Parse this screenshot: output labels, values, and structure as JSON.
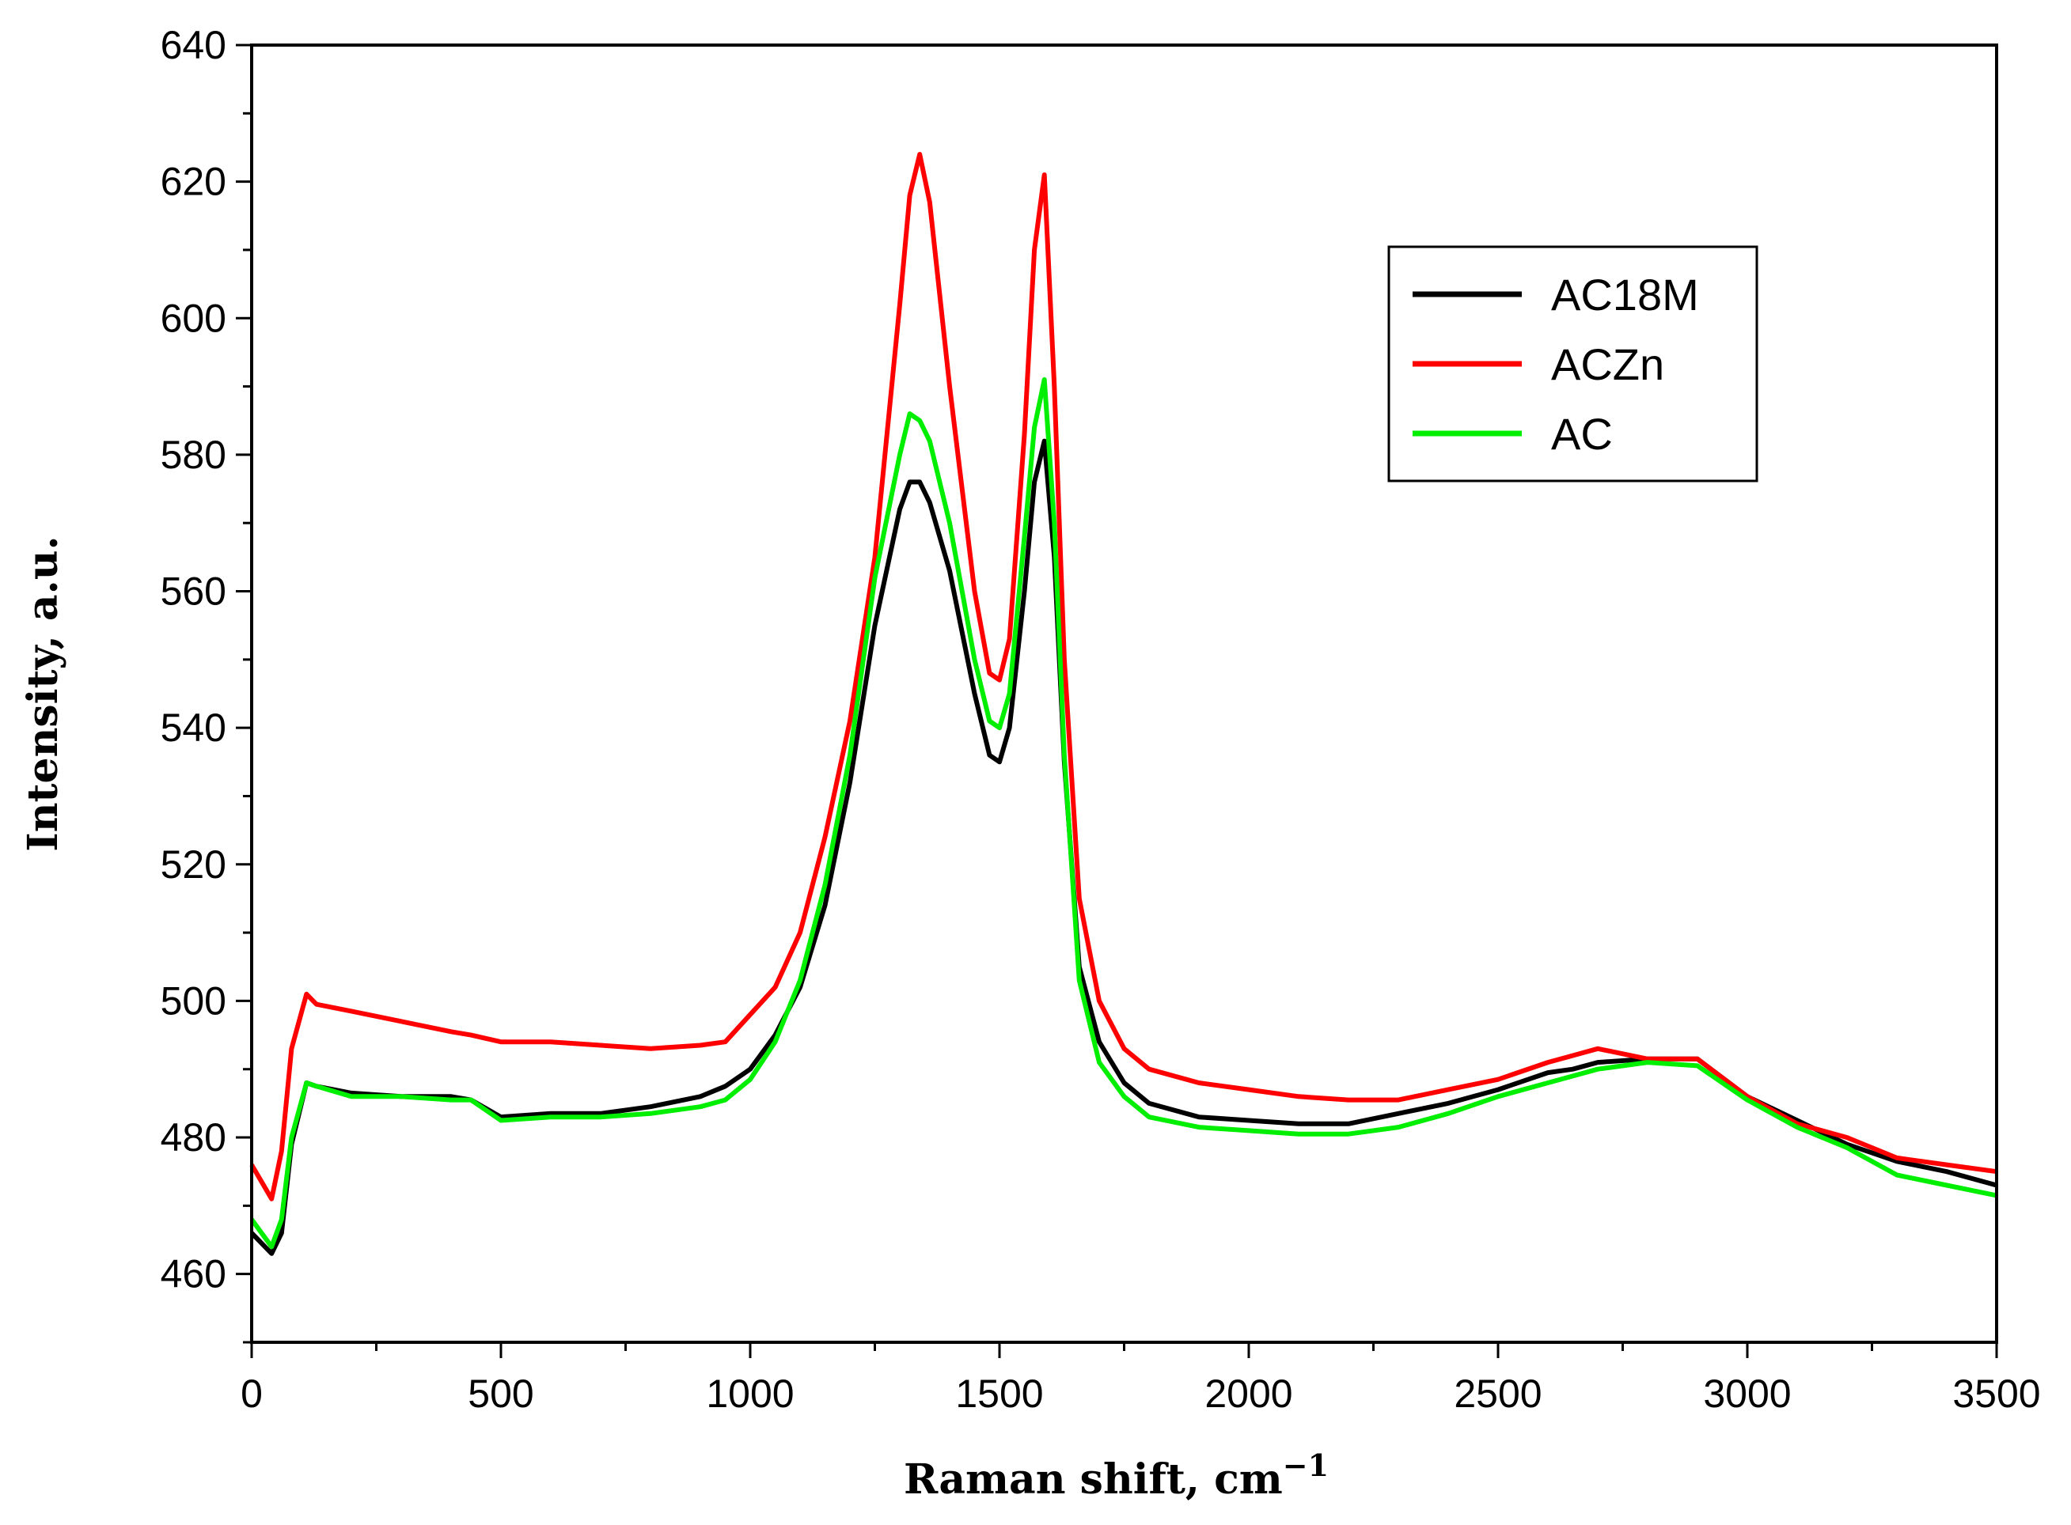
{
  "chart_data": {
    "type": "line",
    "title": "",
    "xlabel": "Raman shift, cm",
    "xlabel_sup": "−1",
    "ylabel": "Intensity, a.u.",
    "xlim": [
      0,
      3500
    ],
    "ylim": [
      450,
      640
    ],
    "xticks": [
      0,
      500,
      1000,
      1500,
      2000,
      2500,
      3000,
      3500
    ],
    "yticks": [
      460,
      480,
      500,
      520,
      540,
      560,
      580,
      600,
      620,
      640
    ],
    "grid": false,
    "legend_position": "top-right",
    "x": [
      0,
      40,
      60,
      80,
      110,
      130,
      200,
      300,
      400,
      440,
      500,
      600,
      700,
      800,
      900,
      950,
      1000,
      1050,
      1100,
      1150,
      1200,
      1250,
      1300,
      1320,
      1340,
      1360,
      1400,
      1450,
      1480,
      1500,
      1520,
      1550,
      1570,
      1590,
      1610,
      1630,
      1660,
      1700,
      1750,
      1800,
      1900,
      2000,
      2100,
      2200,
      2300,
      2400,
      2500,
      2600,
      2650,
      2700,
      2800,
      2900,
      3000,
      3100,
      3200,
      3300,
      3400,
      3500
    ],
    "series": [
      {
        "name": "AC18M",
        "color": "#000000",
        "values": [
          466,
          463,
          466,
          479,
          488,
          487.5,
          486.5,
          486,
          486,
          485.5,
          483,
          483.5,
          483.5,
          484.5,
          486,
          487.5,
          490,
          495,
          502,
          514,
          532,
          555,
          572,
          576,
          576,
          573,
          563,
          545,
          536,
          535,
          540,
          560,
          576,
          582,
          565,
          535,
          505,
          494,
          488,
          485,
          483,
          482.5,
          482,
          482,
          483.5,
          485,
          487,
          489.5,
          490,
          491,
          491.5,
          491.5,
          486,
          482.5,
          479,
          476.5,
          475,
          473
        ]
      },
      {
        "name": "ACZn",
        "color": "#ff0000",
        "values": [
          476,
          471,
          478,
          493,
          501,
          499.5,
          498.5,
          497,
          495.5,
          495,
          494,
          494,
          493.5,
          493,
          493.5,
          494,
          498,
          502,
          510,
          524,
          541,
          565,
          602,
          618,
          624,
          617,
          590,
          560,
          548,
          547,
          553,
          583,
          610,
          621,
          590,
          550,
          515,
          500,
          493,
          490,
          488,
          487,
          486,
          485.5,
          485.5,
          487,
          488.5,
          491,
          492,
          493,
          491.5,
          491.5,
          486,
          482,
          480,
          477,
          476,
          475
        ]
      },
      {
        "name": "AC",
        "color": "#00ee00",
        "values": [
          468,
          464,
          468,
          480,
          488,
          487.5,
          486,
          486,
          485.5,
          485.5,
          482.5,
          483,
          483,
          483.5,
          484.5,
          485.5,
          488.5,
          494,
          503,
          517,
          536,
          562,
          580,
          586,
          585,
          582,
          570,
          550,
          541,
          540,
          545,
          568,
          584,
          591,
          570,
          536,
          503,
          491,
          486,
          483,
          481.5,
          481,
          480.5,
          480.5,
          481.5,
          483.5,
          486,
          488,
          489,
          490,
          491,
          490.5,
          485.5,
          481.5,
          478.5,
          474.5,
          473,
          471.5
        ]
      }
    ]
  }
}
